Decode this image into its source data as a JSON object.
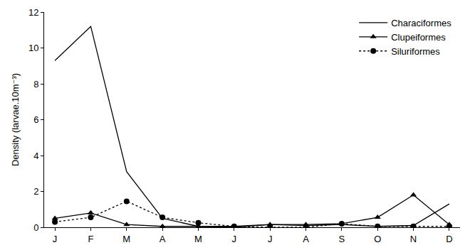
{
  "chart_data": {
    "type": "line",
    "y_label": "Density (larvae.10m⁻³)",
    "categories": [
      "J",
      "F",
      "M",
      "A",
      "M",
      "J",
      "J",
      "A",
      "S",
      "O",
      "N",
      "D"
    ],
    "ylim": [
      0,
      12
    ],
    "yticks": [
      0,
      2,
      4,
      6,
      8,
      10,
      12
    ],
    "grid": false,
    "legend": "upper right",
    "series": [
      {
        "name": "Characiformes",
        "color": "#000000",
        "marker": "none",
        "line_style": "solid",
        "values": [
          9.3,
          11.2,
          3.1,
          0.5,
          0.05,
          0.0,
          0.15,
          0.1,
          0.15,
          0.05,
          0.1,
          1.3
        ]
      },
      {
        "name": "Clupeiformes",
        "color": "#000000",
        "marker": "triangle",
        "line_style": "solid",
        "values": [
          0.5,
          0.8,
          0.15,
          0.05,
          0.05,
          0.05,
          0.15,
          0.15,
          0.2,
          0.55,
          1.8,
          0.15
        ]
      },
      {
        "name": "Siluriformes",
        "color": "#000000",
        "marker": "circle",
        "line_style": "dot",
        "values": [
          0.3,
          0.55,
          1.45,
          0.55,
          0.25,
          0.05,
          0.0,
          0.0,
          0.2,
          0.05,
          0.05,
          0.05
        ]
      }
    ]
  }
}
